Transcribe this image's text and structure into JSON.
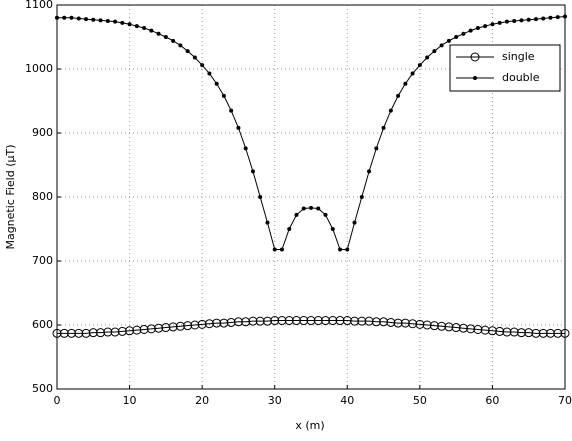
{
  "chart_data": {
    "type": "line",
    "xlabel": "x (m)",
    "ylabel": "Magnetic Field (μT)",
    "x": [
      0,
      1,
      2,
      3,
      4,
      5,
      6,
      7,
      8,
      9,
      10,
      11,
      12,
      13,
      14,
      15,
      16,
      17,
      18,
      19,
      20,
      21,
      22,
      23,
      24,
      25,
      26,
      27,
      28,
      29,
      30,
      31,
      32,
      33,
      34,
      35,
      36,
      37,
      38,
      39,
      40,
      41,
      42,
      43,
      44,
      45,
      46,
      47,
      48,
      49,
      50,
      51,
      52,
      53,
      54,
      55,
      56,
      57,
      58,
      59,
      60,
      61,
      62,
      63,
      64,
      65,
      66,
      67,
      68,
      69,
      70
    ],
    "series": [
      {
        "name": "single",
        "color": "#000000",
        "marker": "circle",
        "values": [
          587,
          587,
          587,
          587,
          587,
          588,
          588,
          589,
          589,
          590,
          591,
          592,
          593,
          594,
          595,
          596,
          597,
          598,
          599,
          600,
          601,
          602,
          603,
          603,
          604,
          605,
          605,
          606,
          606,
          606,
          607,
          607,
          607,
          607,
          607,
          607,
          607,
          607,
          607,
          607,
          607,
          606,
          606,
          606,
          605,
          605,
          604,
          603,
          603,
          602,
          601,
          600,
          599,
          598,
          597,
          596,
          595,
          594,
          593,
          592,
          591,
          590,
          589,
          589,
          588,
          588,
          587,
          587,
          587,
          587,
          587
        ]
      },
      {
        "name": "double",
        "color": "#000000",
        "marker": "dot",
        "values": [
          1080,
          1080,
          1080,
          1079,
          1078,
          1077,
          1076,
          1075,
          1074,
          1072,
          1070,
          1067,
          1064,
          1060,
          1055,
          1050,
          1044,
          1037,
          1028,
          1018,
          1006,
          993,
          977,
          958,
          935,
          908,
          876,
          840,
          800,
          760,
          718,
          718,
          750,
          772,
          782,
          783,
          782,
          772,
          750,
          718,
          718,
          760,
          800,
          840,
          876,
          908,
          935,
          958,
          977,
          993,
          1006,
          1018,
          1028,
          1037,
          1044,
          1050,
          1055,
          1060,
          1064,
          1067,
          1070,
          1072,
          1074,
          1075,
          1076,
          1077,
          1078,
          1079,
          1080,
          1081,
          1082
        ]
      }
    ],
    "xlim": [
      0,
      70
    ],
    "xticks": [
      0,
      10,
      20,
      30,
      40,
      50,
      60,
      70
    ],
    "ylim": [
      500,
      1100
    ],
    "yticks": [
      500,
      600,
      700,
      800,
      900,
      1000,
      1100
    ],
    "grid": true,
    "legend": "upper right"
  }
}
